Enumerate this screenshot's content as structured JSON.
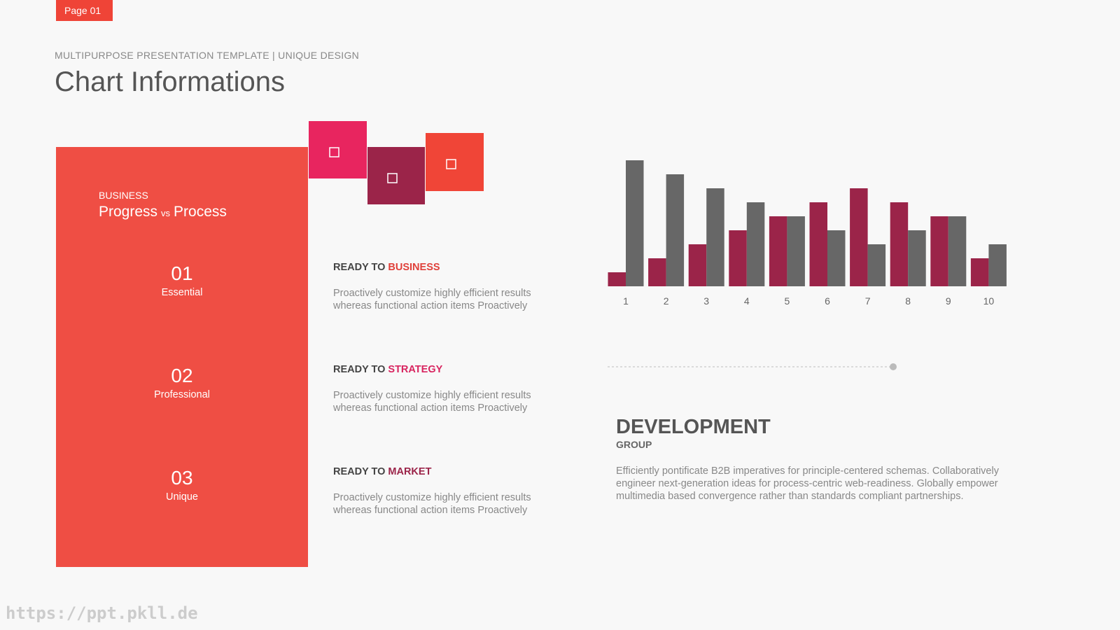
{
  "page_tag": "Page 01",
  "header": {
    "subtitle": "MULTIPURPOSE PRESENTATION TEMPLATE | UNIQUE DESIGN",
    "title": "Chart Informations"
  },
  "panel": {
    "label": "BUSINESS",
    "title_left": "Progress",
    "title_vs": "vs",
    "title_right": "Process",
    "items": [
      {
        "number": "01",
        "label": "Essential"
      },
      {
        "number": "02",
        "label": "Professional"
      },
      {
        "number": "03",
        "label": "Unique"
      }
    ]
  },
  "features": [
    {
      "prefix": "READY TO",
      "highlight": "BUSINESS",
      "text_lines": [
        "Proactively customize highly efficient results",
        "whereas functional action items Proactively"
      ]
    },
    {
      "prefix": "READY TO",
      "highlight": "STRATEGY",
      "text_lines": [
        "Proactively customize highly efficient results",
        "whereas functional action items Proactively"
      ]
    },
    {
      "prefix": "READY TO",
      "highlight": "MARKET",
      "text_lines": [
        "Proactively customize highly efficient results",
        "whereas functional action items Proactively"
      ]
    }
  ],
  "chart_data": {
    "type": "bar",
    "categories": [
      "1",
      "2",
      "3",
      "4",
      "5",
      "6",
      "7",
      "8",
      "9",
      "10"
    ],
    "series": [
      {
        "color": "#9b2449",
        "values": [
          1,
          2,
          3,
          4,
          5,
          6,
          7,
          6,
          5,
          2
        ]
      },
      {
        "color": "#676767",
        "values": [
          9,
          8,
          7,
          6,
          5,
          4,
          3,
          4,
          5,
          3
        ]
      }
    ],
    "ylim": [
      0,
      9
    ]
  },
  "development": {
    "title": "DEVELOPMENT",
    "subtitle": "GROUP",
    "text_lines": [
      "Efficiently pontificate B2B imperatives for principle-centered schemas. Collaboratively",
      "engineer next-generation ideas for process-centric web-readiness. Globally empower",
      "multimedia based convergence rather than standards compliant partnerships."
    ]
  },
  "watermark": "https://ppt.pkll.de"
}
